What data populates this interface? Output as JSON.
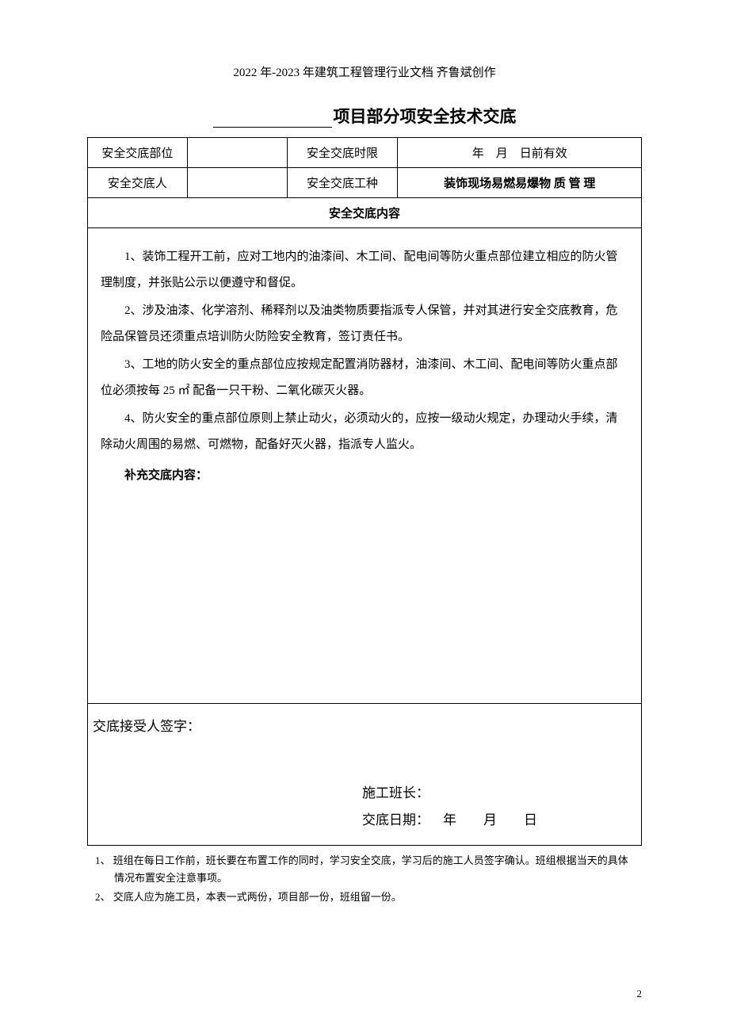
{
  "header": "2022 年-2023 年建筑工程管理行业文档 齐鲁斌创作",
  "title_prefix_blank": "",
  "title_text": "项目部分项安全技术交底",
  "form": {
    "row1_label": "安全交底部位",
    "row1_value": "",
    "row1_label2": "安全交底时限",
    "row1_value2": "年　月　日前有效",
    "row2_label": "安全交底人",
    "row2_value": "",
    "row2_label2": "安全交底工种",
    "row2_value2": "装饰现场易燃易爆物 质 管 理"
  },
  "content_header": "安全交底内容",
  "content": {
    "p1": "1、装饰工程开工前，应对工地内的油漆间、木工间、配电间等防火重点部位建立相应的防火管理制度，并张贴公示以便遵守和督促。",
    "p2": "2、涉及油漆、化学溶剂、稀释剂以及油类物质要指派专人保管，并对其进行安全交底教育，危险品保管员还须重点培训防火防险安全教育，签订责任书。",
    "p3": "3、工地的防火安全的重点部位应按规定配置消防器材，油漆间、木工间、配电间等防火重点部位必须按每 25 ㎡ 配备一只干粉、二氧化碳灭火器。",
    "p4": "4、防火安全的重点部位原则上禁止动火，必须动火的，应按一级动火规定，办理动火手续，清除动火周围的易燃、可燃物，配备好灭火器，指派专人监火。",
    "supplement_label": "补充交底内容："
  },
  "signature": {
    "receiver_label": "交底接受人签字：",
    "foreman_label": "施工班长：",
    "date_label": "交底日期：",
    "date_value": "年　　月　　日"
  },
  "notes": {
    "n1": "1、 班组在每日工作前，班长要在布置工作的同时，学习安全交底，学习后的施工人员签字确认。班组根据当天的具体情况布置安全注意事项。",
    "n2": "2、 交底人应为施工员，本表一式两份，项目部一份，班组留一份。"
  },
  "page_number": "2",
  "styles": {
    "background_color": "#ffffff",
    "text_color": "#000000",
    "border_color": "#000000",
    "header_fontsize": 15,
    "title_fontsize": 21,
    "body_fontsize": 15,
    "signature_fontsize": 17,
    "notes_fontsize": 13
  }
}
